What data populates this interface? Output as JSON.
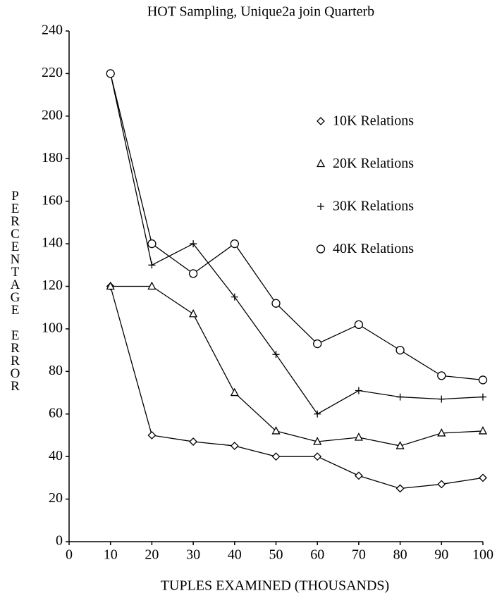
{
  "chart_data": {
    "type": "line",
    "title": "HOT Sampling, Unique2a join Quarterb",
    "x_label": "TUPLES EXAMINED (THOUSANDS)",
    "y_label": "PERCENTAGE ERROR",
    "x": [
      10,
      20,
      30,
      40,
      50,
      60,
      70,
      80,
      90,
      100
    ],
    "series": [
      {
        "name": "10K Relations",
        "color": "#000000",
        "marker": "diamond",
        "values": [
          120,
          50,
          47,
          45,
          40,
          40,
          31,
          25,
          27,
          30
        ]
      },
      {
        "name": "20K Relations",
        "color": "#000000",
        "marker": "triangle",
        "values": [
          120,
          120,
          107,
          70,
          52,
          47,
          49,
          45,
          51,
          52
        ]
      },
      {
        "name": "30K Relations",
        "color": "#000000",
        "marker": "plus",
        "values": [
          220,
          130,
          140,
          115,
          88,
          60,
          71,
          68,
          67,
          68
        ]
      },
      {
        "name": "40K Relations",
        "color": "#000000",
        "marker": "circle",
        "values": [
          220,
          140,
          126,
          140,
          112,
          93,
          102,
          90,
          78,
          76
        ]
      }
    ],
    "xlim": [
      0,
      100
    ],
    "xticks": [
      0,
      10,
      20,
      30,
      40,
      50,
      60,
      70,
      80,
      90,
      100
    ],
    "ylim": [
      0,
      240
    ],
    "yticks": [
      0,
      20,
      40,
      60,
      80,
      100,
      120,
      140,
      160,
      180,
      200,
      220,
      240
    ],
    "grid": false,
    "legend": "upper right"
  }
}
